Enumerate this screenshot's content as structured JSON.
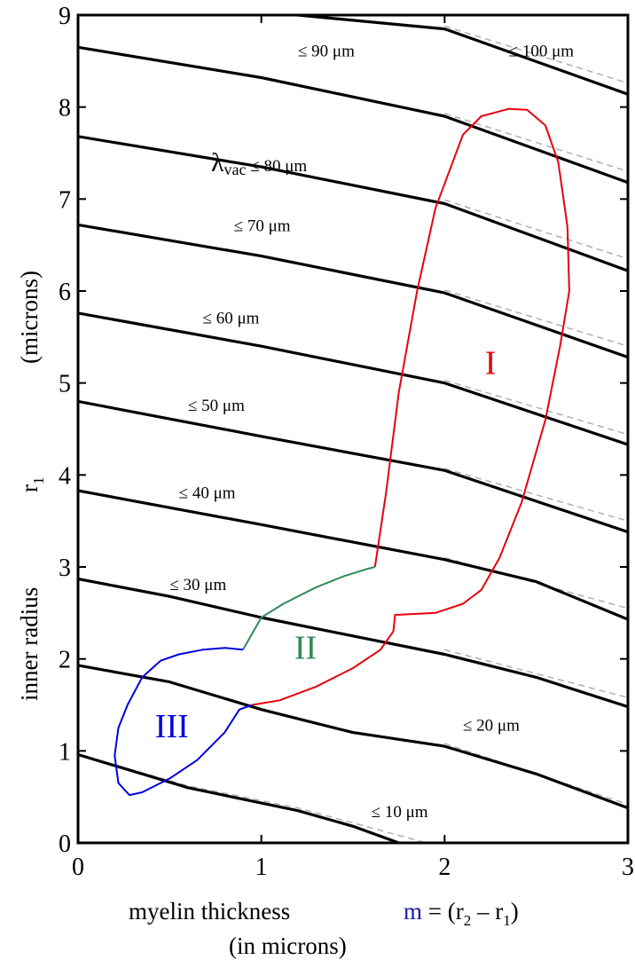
{
  "chart_data": {
    "type": "line",
    "xlabel": {
      "text": "myelin thickness",
      "formula_var": "m",
      "formula_rest": " = (r",
      "sub1": "2",
      "mid": " – r",
      "sub2": "1",
      "close": ")",
      "line2": "(in microns)"
    },
    "ylabel": {
      "text": "inner  radius",
      "var": "r",
      "sub": "1",
      "unit": "(microns)"
    },
    "xlim": [
      0,
      3
    ],
    "ylim": [
      0,
      9
    ],
    "x_ticks": [
      "0",
      "1",
      "2",
      "3"
    ],
    "y_ticks": [
      "0",
      "1",
      "2",
      "3",
      "4",
      "5",
      "6",
      "7",
      "8",
      "9"
    ],
    "grid": false,
    "series": [
      {
        "label": "≤ 10 μm",
        "points": [
          [
            0,
            0.96
          ],
          [
            0.6,
            0.6
          ],
          [
            1.2,
            0.35
          ],
          [
            1.5,
            0.18
          ],
          [
            1.75,
            0
          ]
        ]
      },
      {
        "label": "≤ 20 μm",
        "points": [
          [
            0,
            1.93
          ],
          [
            0.5,
            1.75
          ],
          [
            1.0,
            1.45
          ],
          [
            1.5,
            1.2
          ],
          [
            2.0,
            1.05
          ],
          [
            2.5,
            0.75
          ],
          [
            3,
            0.38
          ]
        ]
      },
      {
        "label": "≤ 30 μm",
        "points": [
          [
            0,
            2.87
          ],
          [
            0.5,
            2.68
          ],
          [
            1.0,
            2.45
          ],
          [
            1.5,
            2.25
          ],
          [
            2.0,
            2.05
          ],
          [
            2.5,
            1.8
          ],
          [
            3,
            1.48
          ]
        ]
      },
      {
        "label": "≤ 40 μm",
        "points": [
          [
            0,
            3.83
          ],
          [
            1.0,
            3.46
          ],
          [
            2.0,
            3.08
          ],
          [
            2.5,
            2.84
          ],
          [
            3,
            2.43
          ]
        ]
      },
      {
        "label": "≤ 50 μm",
        "points": [
          [
            0,
            4.8
          ],
          [
            1.0,
            4.42
          ],
          [
            2.0,
            4.05
          ],
          [
            3,
            3.38
          ]
        ]
      },
      {
        "label": "≤ 60 μm",
        "points": [
          [
            0,
            5.76
          ],
          [
            1.0,
            5.4
          ],
          [
            2.0,
            5.0
          ],
          [
            3,
            4.33
          ]
        ]
      },
      {
        "label": "≤ 70 μm",
        "points": [
          [
            0,
            6.72
          ],
          [
            1.0,
            6.38
          ],
          [
            2.0,
            5.98
          ],
          [
            3,
            5.28
          ]
        ]
      },
      {
        "label_prefix": "λ",
        "label_sub": "vac",
        "label": "≤ 80 μm",
        "points": [
          [
            0,
            7.68
          ],
          [
            1.0,
            7.35
          ],
          [
            2.0,
            6.95
          ],
          [
            3,
            6.22
          ]
        ]
      },
      {
        "label": "≤ 90 μm",
        "points": [
          [
            0,
            8.65
          ],
          [
            1.0,
            8.32
          ],
          [
            2.0,
            7.9
          ],
          [
            3,
            7.18
          ]
        ]
      },
      {
        "label": "≤ 100 μm",
        "points": [
          [
            1.2,
            9
          ],
          [
            2.0,
            8.85
          ],
          [
            3,
            8.14
          ]
        ]
      }
    ],
    "dashed_series": [
      [
        [
          0,
          0.96
        ],
        [
          0.6,
          0.62
        ],
        [
          1.2,
          0.38
        ],
        [
          1.9,
          0.0
        ]
      ],
      [
        [
          2.0,
          1.08
        ],
        [
          3,
          0.42
        ]
      ],
      [
        [
          2.0,
          2.1
        ],
        [
          3,
          1.58
        ]
      ],
      [
        [
          2.0,
          3.1
        ],
        [
          3,
          2.55
        ]
      ],
      [
        [
          2.0,
          4.07
        ],
        [
          3,
          3.5
        ]
      ],
      [
        [
          2.0,
          5.03
        ],
        [
          3,
          4.44
        ]
      ],
      [
        [
          2.0,
          6.01
        ],
        [
          3,
          5.4
        ]
      ],
      [
        [
          2.0,
          6.99
        ],
        [
          3,
          6.35
        ]
      ],
      [
        [
          2.0,
          7.93
        ],
        [
          3,
          7.3
        ]
      ],
      [
        [
          2.0,
          8.88
        ],
        [
          3,
          8.26
        ]
      ]
    ],
    "regions": [
      {
        "label": "I",
        "color": "#e8000b",
        "label_pos": [
          2.22,
          5.1
        ],
        "points": [
          [
            1.62,
            3.0
          ],
          [
            1.68,
            3.8
          ],
          [
            1.75,
            4.9
          ],
          [
            1.85,
            6.0
          ],
          [
            1.95,
            6.9
          ],
          [
            2.1,
            7.7
          ],
          [
            2.2,
            7.9
          ],
          [
            2.35,
            7.98
          ],
          [
            2.45,
            7.97
          ],
          [
            2.55,
            7.8
          ],
          [
            2.62,
            7.4
          ],
          [
            2.67,
            6.7
          ],
          [
            2.68,
            6.0
          ],
          [
            2.63,
            5.4
          ],
          [
            2.55,
            4.6
          ],
          [
            2.42,
            3.7
          ],
          [
            2.3,
            3.1
          ],
          [
            2.2,
            2.75
          ],
          [
            2.1,
            2.6
          ],
          [
            1.95,
            2.5
          ],
          [
            1.75,
            2.48
          ],
          [
            1.73,
            2.48
          ],
          [
            1.72,
            2.3
          ],
          [
            1.65,
            2.1
          ],
          [
            1.5,
            1.9
          ],
          [
            1.3,
            1.7
          ],
          [
            1.1,
            1.55
          ],
          [
            0.95,
            1.5
          ]
        ]
      },
      {
        "label": "II",
        "color": "#2e8b57",
        "label_pos": [
          1.18,
          2.0
        ],
        "points": [
          [
            0.9,
            2.1
          ],
          [
            1.0,
            2.45
          ],
          [
            1.12,
            2.6
          ],
          [
            1.3,
            2.78
          ],
          [
            1.45,
            2.9
          ],
          [
            1.58,
            2.98
          ],
          [
            1.62,
            3.0
          ]
        ]
      },
      {
        "label": "III",
        "color": "#0000e0",
        "label_pos": [
          0.42,
          1.15
        ],
        "points": [
          [
            0.9,
            2.1
          ],
          [
            0.8,
            2.12
          ],
          [
            0.68,
            2.1
          ],
          [
            0.55,
            2.05
          ],
          [
            0.45,
            1.98
          ],
          [
            0.35,
            1.8
          ],
          [
            0.27,
            1.5
          ],
          [
            0.22,
            1.25
          ],
          [
            0.2,
            0.95
          ],
          [
            0.22,
            0.65
          ],
          [
            0.28,
            0.52
          ],
          [
            0.35,
            0.55
          ],
          [
            0.5,
            0.7
          ],
          [
            0.65,
            0.9
          ],
          [
            0.8,
            1.2
          ],
          [
            0.88,
            1.45
          ],
          [
            0.95,
            1.5
          ]
        ]
      }
    ],
    "colors": {
      "curves": "#000000",
      "dashed": "#b0b0b0",
      "axis": "#000000",
      "m_var": "#1a1aa0"
    }
  }
}
